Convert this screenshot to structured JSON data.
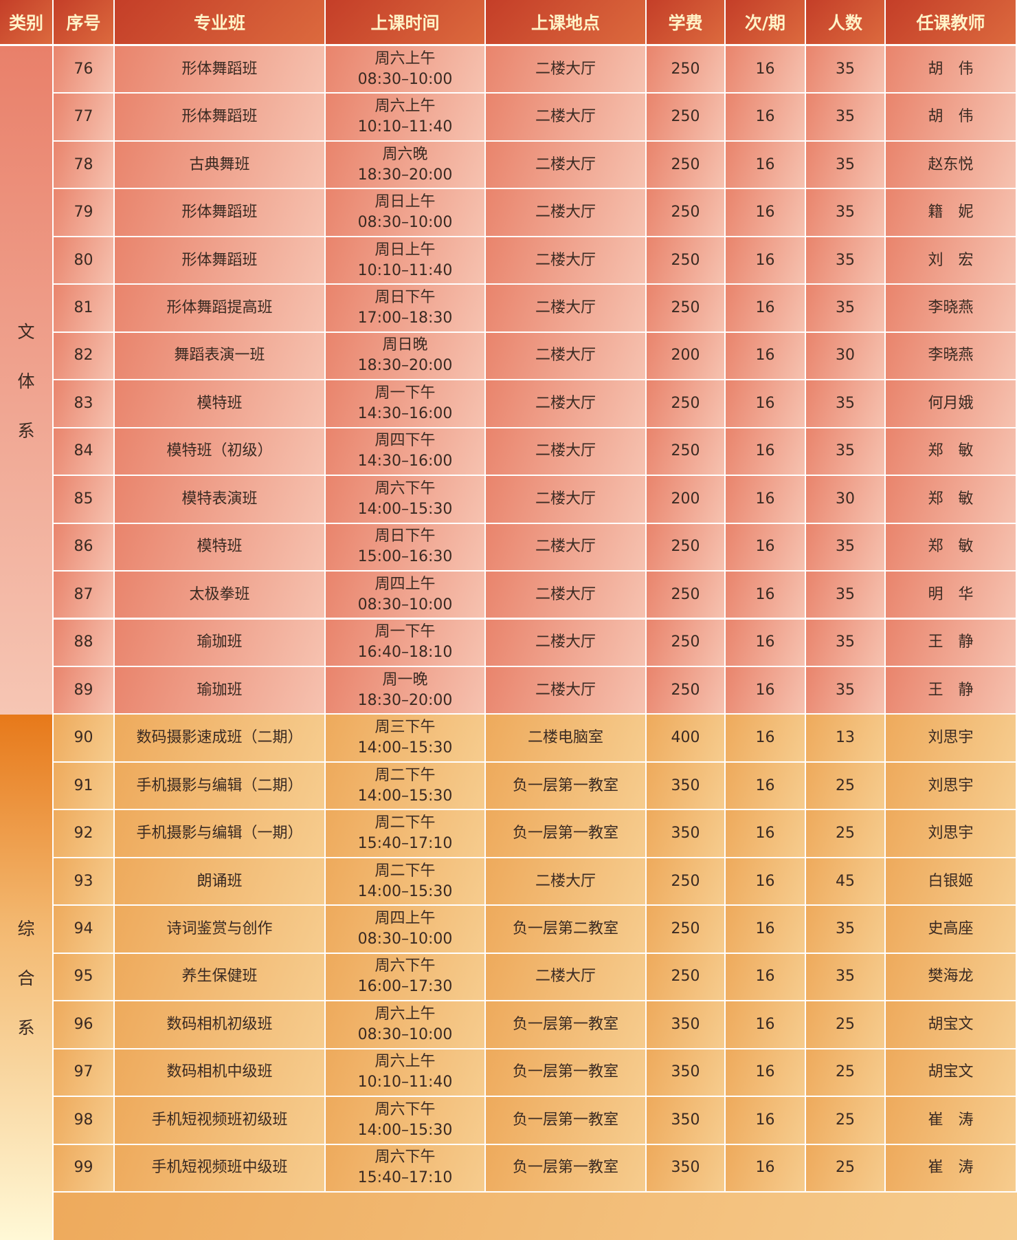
{
  "headers": [
    "类别",
    "序号",
    "专业班",
    "上课时间",
    "上课地点",
    "学费",
    "次/期",
    "人数",
    "任课教师"
  ],
  "categories": [
    {
      "label": [
        "文",
        "体",
        "系"
      ],
      "rows": 14
    },
    {
      "label": [
        "综",
        "合",
        "系"
      ],
      "rows": 10
    }
  ],
  "rows": [
    [
      "76",
      "形体舞蹈班",
      "周六上午",
      "08:30–10:00",
      "二楼大厅",
      "250",
      "16",
      "35",
      "胡　伟"
    ],
    [
      "77",
      "形体舞蹈班",
      "周六上午",
      "10:10–11:40",
      "二楼大厅",
      "250",
      "16",
      "35",
      "胡　伟"
    ],
    [
      "78",
      "古典舞班",
      "周六晚",
      "18:30–20:00",
      "二楼大厅",
      "250",
      "16",
      "35",
      "赵东悦"
    ],
    [
      "79",
      "形体舞蹈班",
      "周日上午",
      "08:30–10:00",
      "二楼大厅",
      "250",
      "16",
      "35",
      "籍　妮"
    ],
    [
      "80",
      "形体舞蹈班",
      "周日上午",
      "10:10–11:40",
      "二楼大厅",
      "250",
      "16",
      "35",
      "刘　宏"
    ],
    [
      "81",
      "形体舞蹈提高班",
      "周日下午",
      "17:00–18:30",
      "二楼大厅",
      "250",
      "16",
      "35",
      "李晓燕"
    ],
    [
      "82",
      "舞蹈表演一班",
      "周日晚",
      "18:30–20:00",
      "二楼大厅",
      "200",
      "16",
      "30",
      "李晓燕"
    ],
    [
      "83",
      "模特班",
      "周一下午",
      "14:30–16:00",
      "二楼大厅",
      "250",
      "16",
      "35",
      "何月娥"
    ],
    [
      "84",
      "模特班（初级）",
      "周四下午",
      "14:30–16:00",
      "二楼大厅",
      "250",
      "16",
      "35",
      "郑　敏"
    ],
    [
      "85",
      "模特表演班",
      "周六下午",
      "14:00–15:30",
      "二楼大厅",
      "200",
      "16",
      "30",
      "郑　敏"
    ],
    [
      "86",
      "模特班",
      "周日下午",
      "15:00–16:30",
      "二楼大厅",
      "250",
      "16",
      "35",
      "郑　敏"
    ],
    [
      "87",
      "太极拳班",
      "周四上午",
      "08:30–10:00",
      "二楼大厅",
      "250",
      "16",
      "35",
      "明　华"
    ],
    [
      "88",
      "瑜珈班",
      "周一下午",
      "16:40–18:10",
      "二楼大厅",
      "250",
      "16",
      "35",
      "王　静"
    ],
    [
      "89",
      "瑜珈班",
      "周一晚",
      "18:30–20:00",
      "二楼大厅",
      "250",
      "16",
      "35",
      "王　静"
    ],
    [
      "90",
      "数码摄影速成班（二期）",
      "周三下午",
      "14:00–15:30",
      "二楼电脑室",
      "400",
      "16",
      "13",
      "刘思宇"
    ],
    [
      "91",
      "手机摄影与编辑（二期）",
      "周二下午",
      "14:00–15:30",
      "负一层第一教室",
      "350",
      "16",
      "25",
      "刘思宇"
    ],
    [
      "92",
      "手机摄影与编辑（一期）",
      "周二下午",
      "15:40–17:10",
      "负一层第一教室",
      "350",
      "16",
      "25",
      "刘思宇"
    ],
    [
      "93",
      "朗诵班",
      "周二下午",
      "14:00–15:30",
      "二楼大厅",
      "250",
      "16",
      "45",
      "白银姬"
    ],
    [
      "94",
      "诗词鉴赏与创作",
      "周四上午",
      "08:30–10:00",
      "负一层第二教室",
      "250",
      "16",
      "35",
      "史高座"
    ],
    [
      "95",
      "养生保健班",
      "周六下午",
      "16:00–17:30",
      "二楼大厅",
      "250",
      "16",
      "35",
      "樊海龙"
    ],
    [
      "96",
      "数码相机初级班",
      "周六上午",
      "08:30–10:00",
      "负一层第一教室",
      "350",
      "16",
      "25",
      "胡宝文"
    ],
    [
      "97",
      "数码相机中级班",
      "周六上午",
      "10:10–11:40",
      "负一层第一教室",
      "350",
      "16",
      "25",
      "胡宝文"
    ],
    [
      "98",
      "手机短视频班初级班",
      "周六下午",
      "14:00–15:30",
      "负一层第一教室",
      "350",
      "16",
      "25",
      "崔　涛"
    ],
    [
      "99",
      "手机短视频班中级班",
      "周六下午",
      "15:40–17:10",
      "负一层第一教室",
      "350",
      "16",
      "25",
      "崔　涛"
    ]
  ]
}
